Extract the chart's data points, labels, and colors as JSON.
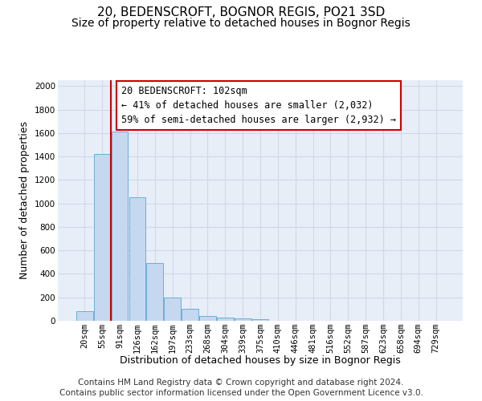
{
  "title": "20, BEDENSCROFT, BOGNOR REGIS, PO21 3SD",
  "subtitle": "Size of property relative to detached houses in Bognor Regis",
  "xlabel": "Distribution of detached houses by size in Bognor Regis",
  "ylabel": "Number of detached properties",
  "footnote1": "Contains HM Land Registry data © Crown copyright and database right 2024.",
  "footnote2": "Contains public sector information licensed under the Open Government Licence v3.0.",
  "bar_labels": [
    "20sqm",
    "55sqm",
    "91sqm",
    "126sqm",
    "162sqm",
    "197sqm",
    "233sqm",
    "268sqm",
    "304sqm",
    "339sqm",
    "375sqm",
    "410sqm",
    "446sqm",
    "481sqm",
    "516sqm",
    "552sqm",
    "587sqm",
    "623sqm",
    "658sqm",
    "694sqm",
    "729sqm"
  ],
  "bar_values": [
    80,
    1420,
    1610,
    1050,
    490,
    200,
    105,
    40,
    28,
    20,
    15,
    0,
    0,
    0,
    0,
    0,
    0,
    0,
    0,
    0,
    0
  ],
  "bar_color": "#c5d8f0",
  "bar_edge_color": "#6baed6",
  "background_color": "#e8eef8",
  "grid_color": "#d0d8e8",
  "red_line_x": 2.0,
  "annotation_text": "20 BEDENSCROFT: 102sqm\n← 41% of detached houses are smaller (2,032)\n59% of semi-detached houses are larger (2,932) →",
  "annotation_box_color": "#ffffff",
  "annotation_box_edge": "#cc0000",
  "ylim": [
    0,
    2050
  ],
  "yticks": [
    0,
    200,
    400,
    600,
    800,
    1000,
    1200,
    1400,
    1600,
    1800,
    2000
  ],
  "title_fontsize": 11,
  "subtitle_fontsize": 10,
  "xlabel_fontsize": 9,
  "ylabel_fontsize": 9,
  "tick_fontsize": 7.5,
  "annotation_fontsize": 8.5,
  "footnote_fontsize": 7.5
}
